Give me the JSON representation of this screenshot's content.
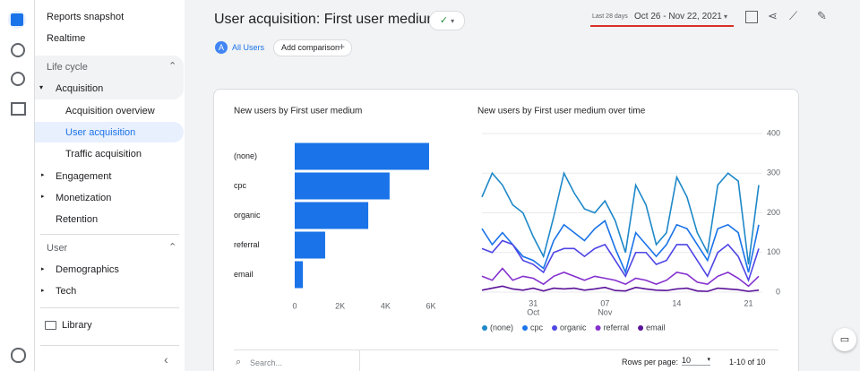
{
  "sidebar": {
    "top_items": [
      "Reports snapshot",
      "Realtime"
    ],
    "lifecycle": {
      "title": "Life cycle",
      "acquisition": "Acquisition",
      "acquisition_items": [
        "Acquisition overview",
        "User acquisition",
        "Traffic acquisition"
      ],
      "items": [
        "Engagement",
        "Monetization",
        "Retention"
      ]
    },
    "user": {
      "title": "User",
      "items": [
        "Demographics",
        "Tech"
      ]
    },
    "library": "Library"
  },
  "header": {
    "title": "User acquisition: First user medium",
    "date_prefix": "Last 28 days",
    "date_range": "Oct 26 - Nov 22, 2021"
  },
  "chips": {
    "segment_letter": "A",
    "segment": "All Users",
    "add": "Add comparison"
  },
  "table_footer": {
    "search": "Search...",
    "rows_per_page": "Rows per page:",
    "rows_value": "10",
    "range": "1-10 of 10"
  },
  "chart_data": [
    {
      "type": "hbar",
      "title": "New users by First user medium",
      "categories": [
        "(none)",
        "cpc",
        "organic",
        "referral",
        "email"
      ],
      "values": [
        5920,
        4180,
        3240,
        1340,
        360
      ],
      "color": "#1a73e8",
      "xlim": [
        0,
        6000
      ],
      "xticks": [
        0,
        {
          "value": 2000,
          "label": "2K"
        },
        {
          "value": 4000,
          "label": "4K"
        },
        {
          "value": 6000,
          "label": "6K"
        }
      ],
      "grid": false
    },
    {
      "type": "line",
      "title": "New users by First user medium over time",
      "categories": [
        null,
        null,
        null,
        null,
        null,
        "31",
        null,
        null,
        null,
        null,
        null,
        null,
        "07",
        null,
        null,
        null,
        null,
        null,
        null,
        "14",
        null,
        null,
        null,
        null,
        null,
        null,
        "21",
        null
      ],
      "category_sublabels": [
        null,
        null,
        null,
        null,
        null,
        "Oct",
        null,
        null,
        null,
        null,
        null,
        null,
        "Nov",
        null,
        null,
        null,
        null,
        null,
        null,
        null,
        null,
        null,
        null,
        null,
        null,
        null,
        null,
        null
      ],
      "ylim": [
        0,
        400
      ],
      "yticks": [
        0,
        100,
        200,
        300,
        400
      ],
      "grid": true,
      "series": [
        {
          "name": "(none)",
          "color": "#1e88c8",
          "values": [
            240,
            300,
            270,
            220,
            200,
            140,
            90,
            190,
            300,
            250,
            210,
            200,
            230,
            180,
            100,
            270,
            220,
            120,
            150,
            290,
            240,
            150,
            100,
            270,
            300,
            280,
            70,
            270
          ]
        },
        {
          "name": "cpc",
          "color": "#1a73e8",
          "values": [
            160,
            120,
            150,
            120,
            90,
            80,
            60,
            130,
            170,
            150,
            130,
            160,
            180,
            110,
            50,
            150,
            120,
            90,
            120,
            170,
            160,
            120,
            80,
            160,
            170,
            150,
            50,
            170
          ]
        },
        {
          "name": "organic",
          "color": "#4f46e5",
          "values": [
            110,
            100,
            130,
            120,
            80,
            70,
            50,
            100,
            110,
            110,
            90,
            110,
            120,
            80,
            40,
            100,
            100,
            70,
            80,
            120,
            120,
            80,
            40,
            100,
            120,
            90,
            30,
            110
          ]
        },
        {
          "name": "referral",
          "color": "#8430ce",
          "values": [
            40,
            30,
            60,
            30,
            40,
            35,
            20,
            40,
            50,
            40,
            30,
            40,
            35,
            30,
            20,
            35,
            30,
            20,
            30,
            50,
            45,
            25,
            20,
            40,
            50,
            35,
            15,
            40
          ]
        },
        {
          "name": "email",
          "color": "#5b1399",
          "values": [
            5,
            10,
            15,
            8,
            5,
            10,
            3,
            10,
            8,
            10,
            5,
            8,
            12,
            4,
            3,
            12,
            8,
            5,
            4,
            8,
            10,
            3,
            2,
            10,
            8,
            6,
            2,
            5
          ]
        }
      ]
    }
  ]
}
